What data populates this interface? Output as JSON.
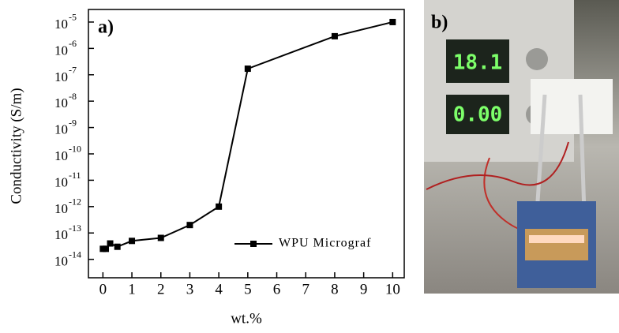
{
  "chart_data": {
    "type": "line",
    "annotation": "a)",
    "x_label": "wt.%",
    "y_label": "Conductivity (S/m)",
    "x": [
      0,
      0.1,
      0.25,
      0.5,
      1,
      2,
      3,
      4,
      5,
      8,
      10
    ],
    "series": [
      {
        "name": "WPU Micrograf",
        "color": "#000000",
        "values": [
          2.5e-14,
          2.5e-14,
          4e-14,
          3e-14,
          5e-14,
          6.5e-14,
          2e-13,
          1e-12,
          1.7e-07,
          2.9e-06,
          1e-05
        ]
      }
    ],
    "xlim": [
      -0.5,
      10.4
    ],
    "xticks": [
      0,
      1,
      2,
      3,
      4,
      5,
      6,
      7,
      8,
      9,
      10
    ],
    "ylim": [
      2e-15,
      3e-05
    ],
    "y_log": true,
    "yticks": [
      {
        "value": 1e-14,
        "label": "10",
        "exponent": "-14"
      },
      {
        "value": 1e-13,
        "label": "10",
        "exponent": "-13"
      },
      {
        "value": 1e-12,
        "label": "10",
        "exponent": "-12"
      },
      {
        "value": 1e-11,
        "label": "10",
        "exponent": "-11"
      },
      {
        "value": 1e-10,
        "label": "10",
        "exponent": "-10"
      },
      {
        "value": 1e-09,
        "label": "10",
        "exponent": "-9"
      },
      {
        "value": 1e-08,
        "label": "10",
        "exponent": "-8"
      },
      {
        "value": 1e-07,
        "label": "10",
        "exponent": "-7"
      },
      {
        "value": 1e-06,
        "label": "10",
        "exponent": "-6"
      },
      {
        "value": 1e-05,
        "label": "10",
        "exponent": "-5"
      }
    ],
    "grid": false,
    "legend": "lower right"
  },
  "photo": {
    "label": "b)",
    "displays": [
      "18.1",
      "0.00"
    ]
  }
}
